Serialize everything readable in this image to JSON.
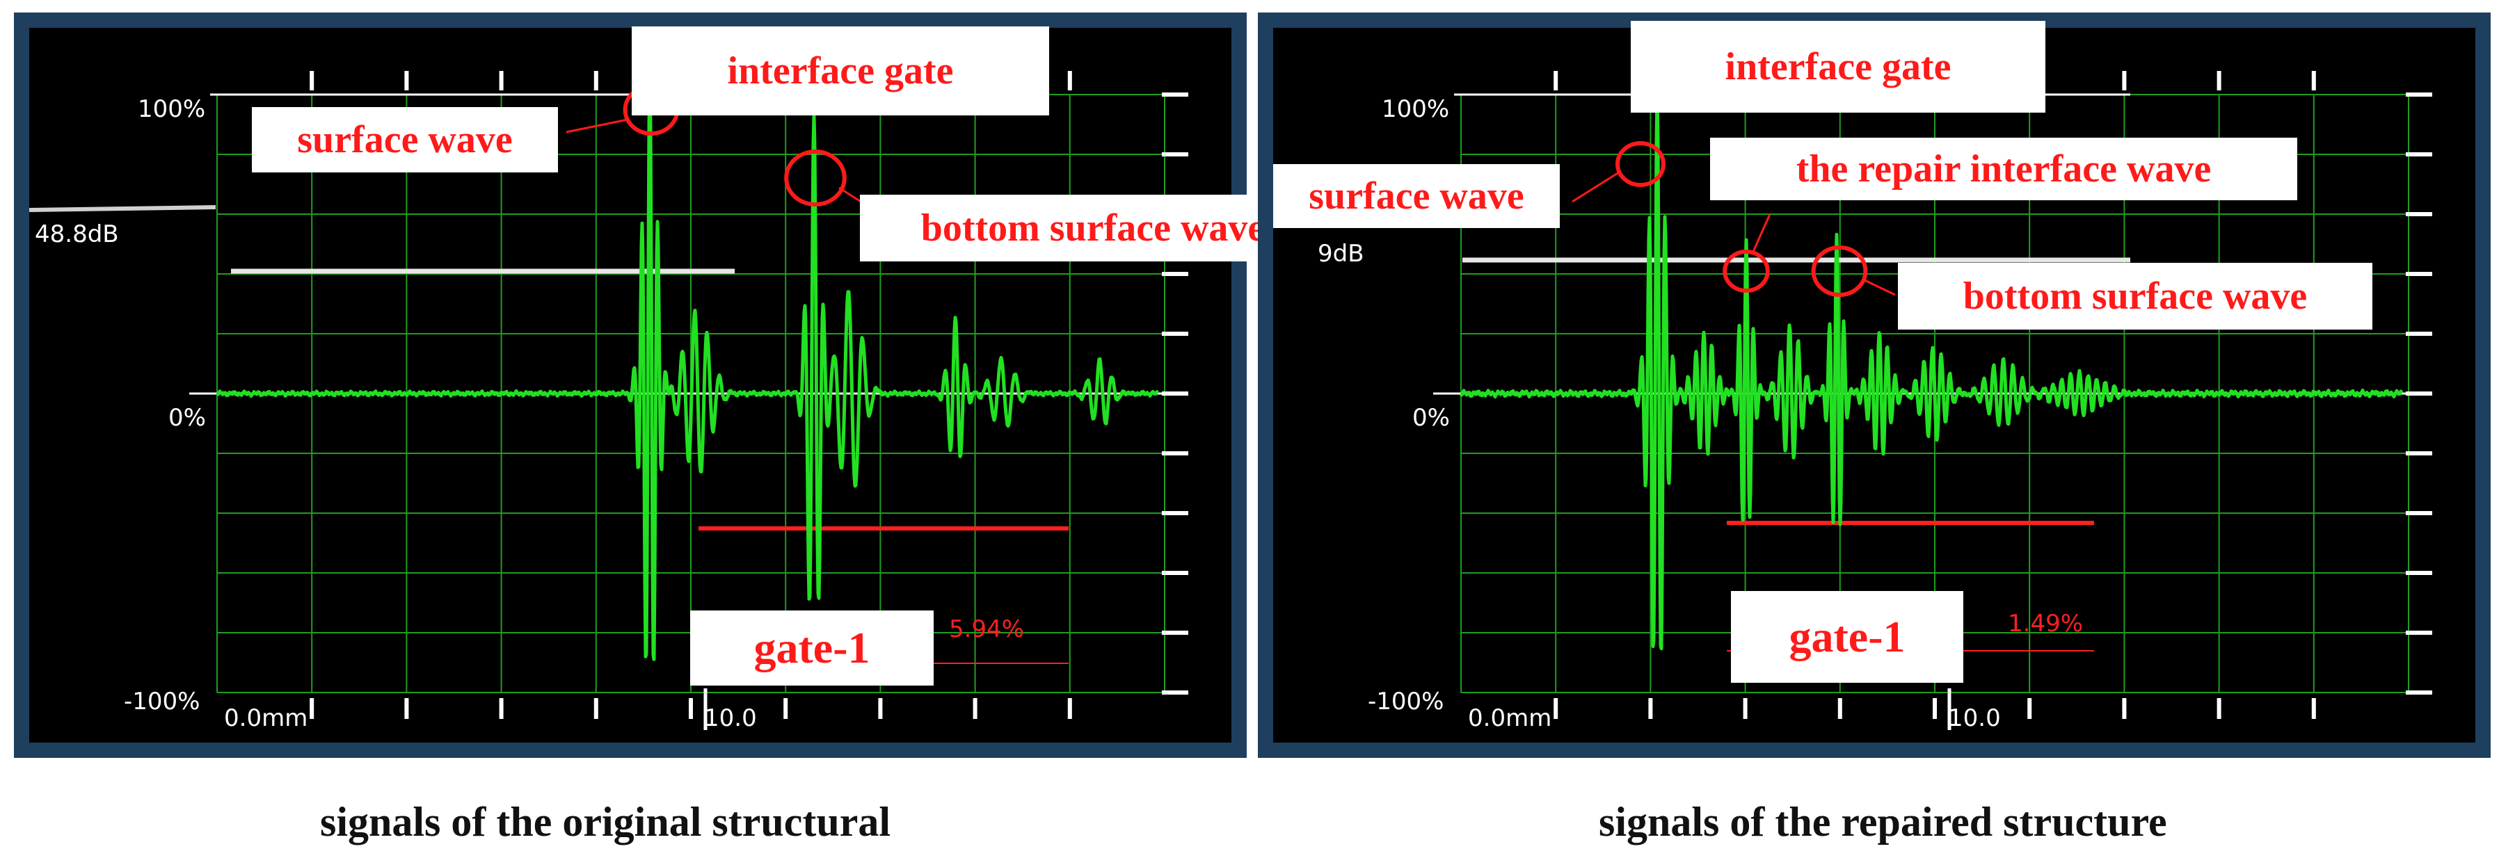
{
  "colors": {
    "frame": "#1f3f5e",
    "screen": "#000000",
    "grid": "#1f9e1f",
    "signal": "#22e022",
    "gate": "#ff2020",
    "marker": "#ff1a1a",
    "annotation_text": "#ff1a1a"
  },
  "panels": [
    {
      "caption": "signals of the original structural",
      "labels": {
        "y_top": "100%",
        "y_mid": "0%",
        "y_bottom": "-100%",
        "gain": "48.8dB",
        "x_start": "0.0mm",
        "x_mid": "10.0",
        "gate_value": "5.94%"
      },
      "annotations": {
        "interface_gate": "interface gate",
        "surface_wave": "surface wave",
        "bottom_surface_wave": "bottom surface wave",
        "gate_1": "gate-1"
      }
    },
    {
      "caption": "signals of the repaired structure",
      "labels": {
        "y_top": "100%",
        "y_mid": "0%",
        "y_bottom": "-100%",
        "gain": "9dB",
        "x_start": "0.0mm",
        "x_mid": "10.0",
        "gate_value": "1.49%"
      },
      "annotations": {
        "interface_gate": "interface gate",
        "surface_wave": "surface wave",
        "repair_interface_wave": "the repair interface wave",
        "bottom_surface_wave": "bottom surface wave",
        "gate_1": "gate-1"
      }
    }
  ]
}
